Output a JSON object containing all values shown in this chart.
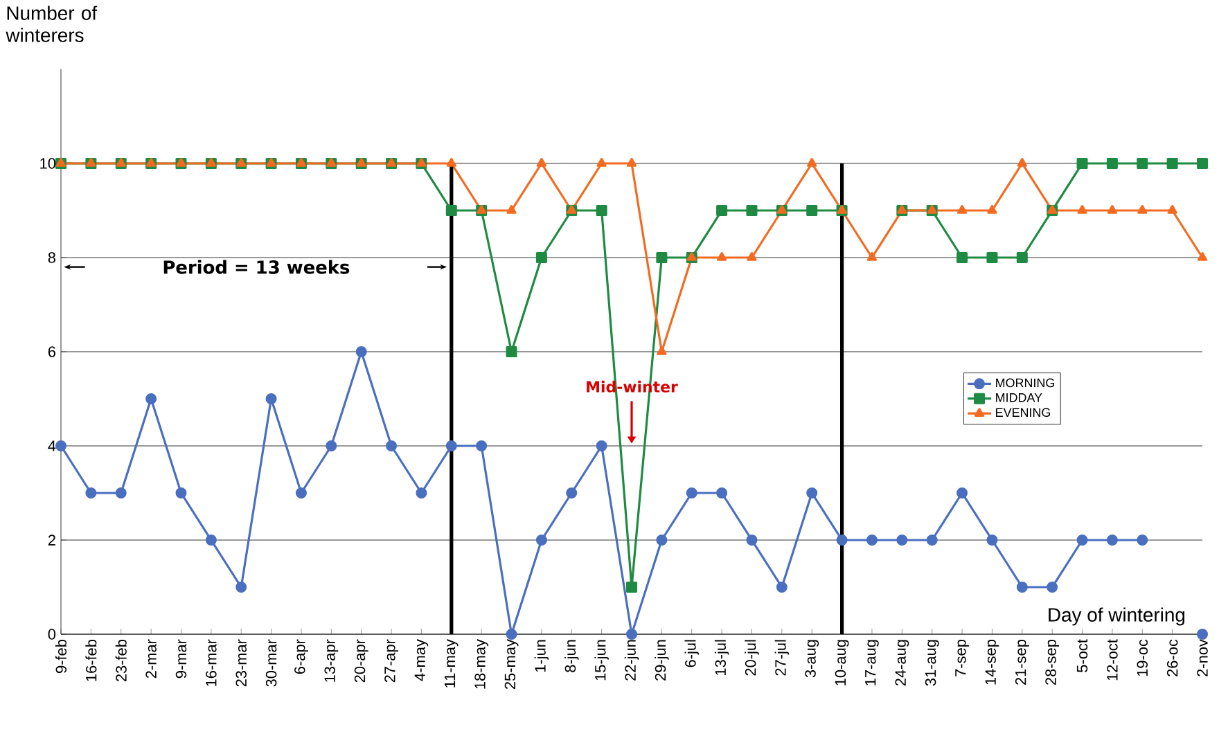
{
  "chart_data": {
    "type": "line",
    "ylabel": "Number of winterers",
    "categories": [
      "9-feb",
      "16-feb",
      "23-feb",
      "2-mar",
      "9-mar",
      "16-mar",
      "23-mar",
      "30-mar",
      "6-apr",
      "13-apr",
      "20-apr",
      "27-apr",
      "4-may",
      "11-may",
      "18-may",
      "25-may",
      "1-jun",
      "8-jun",
      "15-jun",
      "22-jun",
      "29-jun",
      "6-jul",
      "13-jul",
      "20-jul",
      "27-jul",
      "3-aug",
      "10-aug",
      "17-aug",
      "24-aug",
      "31-aug",
      "7-sep",
      "14-sep",
      "21-sep",
      "28-sep",
      "5-oct",
      "12-oct",
      "19-oc",
      "26-oc",
      "2-nov"
    ],
    "series": [
      {
        "name": "MORNING",
        "color": "#4a6fbf",
        "marker": "circle",
        "values": [
          4,
          3,
          3,
          5,
          3,
          2,
          1,
          5,
          3,
          4,
          6,
          4,
          3,
          4,
          4,
          0,
          2,
          3,
          4,
          0,
          2,
          3,
          3,
          2,
          1,
          3,
          2,
          2,
          2,
          2,
          3,
          2,
          1,
          1,
          2,
          2,
          2,
          null,
          0
        ]
      },
      {
        "name": "MIDDAY",
        "color": "#1e8a42",
        "marker": "square",
        "values": [
          10,
          10,
          10,
          10,
          10,
          10,
          10,
          10,
          10,
          10,
          10,
          10,
          10,
          9,
          9,
          6,
          8,
          9,
          9,
          1,
          8,
          8,
          9,
          9,
          9,
          9,
          9,
          null,
          9,
          9,
          8,
          8,
          8,
          9,
          10,
          10,
          10,
          10,
          10
        ]
      },
      {
        "name": "EVENING",
        "color": "#f26b21",
        "marker": "triangle",
        "values": [
          10,
          10,
          10,
          10,
          10,
          10,
          10,
          10,
          10,
          10,
          10,
          10,
          10,
          10,
          9,
          9,
          10,
          9,
          10,
          10,
          6,
          8,
          8,
          8,
          9,
          10,
          9,
          8,
          9,
          9,
          9,
          9,
          10,
          9,
          9,
          9,
          9,
          9,
          8
        ]
      }
    ],
    "ylim": [
      0,
      12
    ],
    "yticks": [
      0,
      2,
      4,
      6,
      8,
      10
    ],
    "grid": "y",
    "legend": "right",
    "ref_lines": [
      {
        "axis": "x",
        "value": "11-may",
        "color": "#000000"
      },
      {
        "axis": "x",
        "value": "10-aug",
        "color": "#000000"
      }
    ],
    "annotations": [
      "Period = 13 weeks",
      "Mid-winter",
      "Day of wintering"
    ]
  }
}
